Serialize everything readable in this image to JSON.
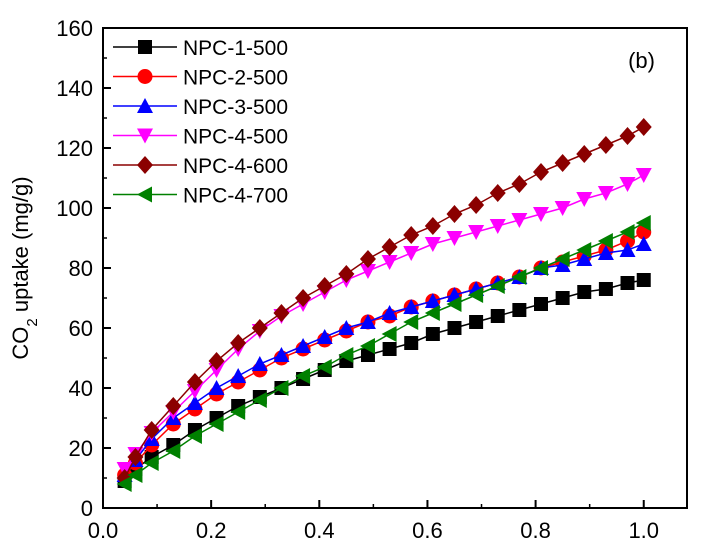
{
  "chart_data": {
    "type": "line",
    "panel_label": "(b)",
    "ylabel": "CO2 uptake (mg/g)",
    "ylabel_parts": {
      "main": "CO",
      "sub": "2",
      "rest": " uptake (mg/g)"
    },
    "xlabel": "",
    "xlim": [
      0.0,
      1.08
    ],
    "ylim": [
      0,
      160
    ],
    "xticks": [
      0.0,
      0.2,
      0.4,
      0.6,
      0.8,
      1.0
    ],
    "xtick_labels": [
      "0.0",
      "0.2",
      "0.4",
      "0.6",
      "0.8",
      "1.0"
    ],
    "yticks": [
      0,
      20,
      40,
      60,
      80,
      100,
      120,
      140,
      160
    ],
    "ytick_labels": [
      "0",
      "20",
      "40",
      "60",
      "80",
      "100",
      "120",
      "140",
      "160"
    ],
    "grid": false,
    "legend_position": "top-left",
    "x": [
      0.04,
      0.06,
      0.09,
      0.13,
      0.17,
      0.21,
      0.25,
      0.29,
      0.33,
      0.37,
      0.41,
      0.45,
      0.49,
      0.53,
      0.57,
      0.61,
      0.65,
      0.69,
      0.73,
      0.77,
      0.81,
      0.85,
      0.89,
      0.93,
      0.97,
      1.0
    ],
    "series": [
      {
        "name": "NPC-1-500",
        "color": "#000000",
        "marker": "square",
        "values": [
          9,
          13,
          17,
          21,
          26,
          30,
          34,
          37,
          40,
          43,
          46,
          49,
          51,
          53,
          55,
          58,
          60,
          62,
          64,
          66,
          68,
          70,
          72,
          73,
          75,
          76
        ]
      },
      {
        "name": "NPC-2-500",
        "color": "#ff0000",
        "marker": "circle",
        "values": [
          11,
          15,
          21,
          28,
          33,
          38,
          42,
          46,
          50,
          53,
          56,
          59,
          62,
          64,
          67,
          69,
          71,
          73,
          75,
          77,
          80,
          82,
          84,
          86,
          89,
          92
        ]
      },
      {
        "name": "NPC-3-500",
        "color": "#0000ff",
        "marker": "triangle-up",
        "values": [
          11,
          16,
          23,
          30,
          35,
          40,
          44,
          48,
          51,
          54,
          57,
          60,
          62,
          65,
          67,
          69,
          71,
          73,
          75,
          77,
          80,
          81,
          83,
          85,
          86,
          88
        ]
      },
      {
        "name": "NPC-4-500",
        "color": "#ff00ff",
        "marker": "triangle-down",
        "values": [
          13,
          18,
          25,
          32,
          39,
          46,
          53,
          59,
          64,
          68,
          72,
          76,
          79,
          82,
          85,
          88,
          90,
          92,
          94,
          96,
          98,
          100,
          103,
          105,
          108,
          111
        ]
      },
      {
        "name": "NPC-4-600",
        "color": "#8b0000",
        "marker": "diamond",
        "values": [
          10,
          17,
          26,
          34,
          42,
          49,
          55,
          60,
          65,
          70,
          74,
          78,
          83,
          87,
          91,
          94,
          98,
          101,
          105,
          108,
          112,
          115,
          118,
          121,
          124,
          127
        ]
      },
      {
        "name": "NPC-4-700",
        "color": "#008000",
        "marker": "triangle-left",
        "values": [
          8,
          11,
          15,
          19,
          24,
          28,
          32,
          36,
          40,
          44,
          47,
          51,
          54,
          58,
          62,
          65,
          68,
          71,
          74,
          77,
          80,
          83,
          86,
          89,
          92,
          95
        ]
      }
    ]
  }
}
